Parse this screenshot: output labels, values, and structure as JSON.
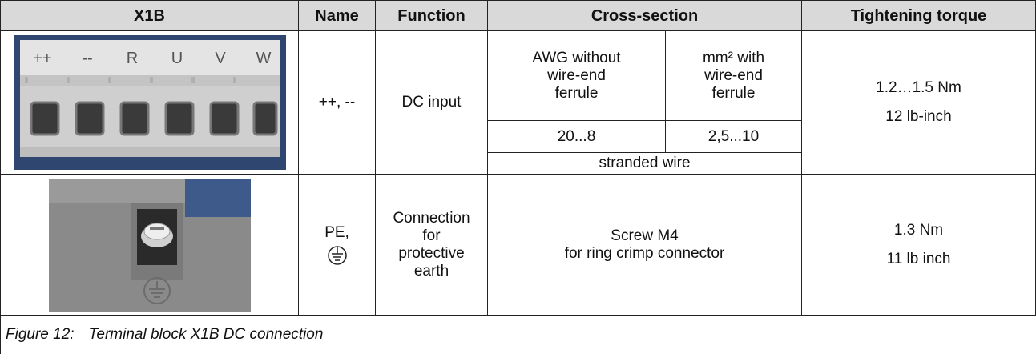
{
  "table": {
    "headers": [
      "X1B",
      "Name",
      "Function",
      "Cross-section",
      "Tightening torque"
    ],
    "rows": [
      {
        "image_labels": [
          "++",
          "--",
          "R",
          "U",
          "V",
          "W"
        ],
        "name": "++, --",
        "function": "DC input",
        "cross_section": {
          "awg_header": [
            "AWG without",
            "wire-end",
            "ferrule"
          ],
          "mm_header": [
            "mm² with",
            "wire-end",
            "ferrule"
          ],
          "awg": "20...8",
          "mm": "2,5...10",
          "note": "stranded wire"
        },
        "torque": [
          "1.2…1.5 Nm",
          "12 lb-inch"
        ]
      },
      {
        "name": "PE,",
        "function": [
          "Connection",
          "for",
          "protective",
          "earth"
        ],
        "cross_section": [
          "Screw M4",
          "for ring crimp connector"
        ],
        "torque": [
          "1.3 Nm",
          "11 lb inch"
        ]
      }
    ]
  },
  "caption": {
    "label": "Figure 12:",
    "text": "Terminal block X1B DC connection"
  }
}
